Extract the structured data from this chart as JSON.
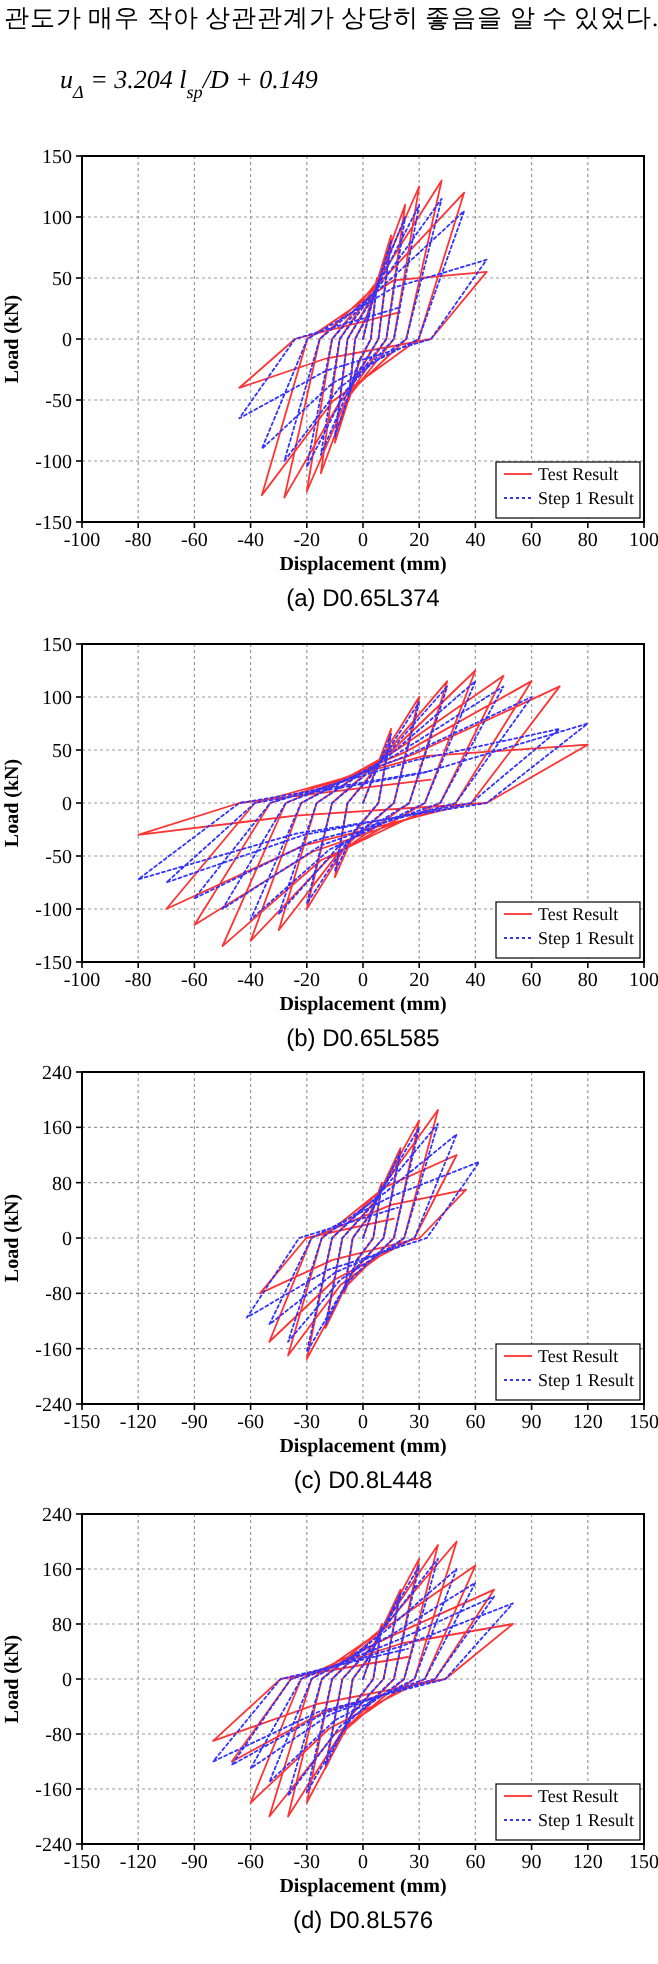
{
  "chart_data": [
    {
      "type": "line",
      "title": "(a) D0.65L374",
      "xlabel": "Displacement (mm)",
      "ylabel": "Load (kN)",
      "annotations": [
        "관도가 매우 작아 상관관계가 상당히 좋음을 알 수 있었다.",
        "u$_{Δ}$ = 3.204 l$_{sp}$/D + 0.149"
      ],
      "xlim": [
        -100,
        100
      ],
      "xticks": [
        -100,
        -80,
        -60,
        -40,
        -20,
        0,
        20,
        40,
        60,
        80,
        100
      ],
      "ylim": [
        -150,
        150
      ],
      "yticks": [
        -150,
        -100,
        -50,
        0,
        50,
        100,
        150
      ],
      "grid": true,
      "legend": "bottom right",
      "series": [
        {
          "name": "Test Result",
          "color": "#ff3333",
          "line_style": "solid",
          "x": [
            0,
            5,
            2.8,
            -1.5,
            -5,
            -2.8,
            1.5,
            10,
            5.5,
            -3,
            -10,
            -5.5,
            3,
            15,
            8.3,
            -4.5,
            -15,
            -8.3,
            4.5,
            20,
            11,
            -6,
            -20,
            -11,
            6,
            28,
            15.4,
            -8.4,
            -28,
            -15.4,
            8.4,
            36,
            19.8,
            -10.8,
            -36,
            -19.8,
            10.8,
            44,
            24.2,
            -13.2,
            -44,
            -24.2,
            13.2
          ],
          "values": [
            0,
            50,
            0,
            -20,
            -50,
            0,
            20,
            85,
            0,
            -34,
            -85,
            0,
            34,
            110,
            0,
            -44,
            -110,
            0,
            44,
            125,
            0,
            -50,
            -125,
            0,
            50,
            130,
            0,
            -52,
            -130,
            0,
            52,
            120,
            0,
            -51,
            -128,
            0,
            48,
            55,
            0,
            -16,
            -40,
            0,
            22
          ]
        },
        {
          "name": "Step 1 Result",
          "color": "#3333ff",
          "line_style": "dotted",
          "x": [
            0,
            5,
            2.8,
            -1.5,
            -5,
            -2.8,
            1.5,
            10,
            5.5,
            -3,
            -10,
            -5.5,
            3,
            15,
            8.3,
            -4.5,
            -15,
            -8.3,
            4.5,
            20,
            11,
            -6,
            -20,
            -11,
            6,
            28,
            15.4,
            -8.4,
            -28,
            -15.4,
            8.4,
            36,
            19.8,
            -10.8,
            -36,
            -19.8,
            10.8,
            44,
            24.2,
            -13.2,
            -44,
            -24.2,
            13.2
          ],
          "values": [
            0,
            45,
            0,
            -18,
            -45,
            0,
            18,
            80,
            0,
            -32,
            -80,
            0,
            32,
            100,
            0,
            -38,
            -95,
            0,
            40,
            110,
            0,
            -42,
            -105,
            0,
            44,
            115,
            0,
            -40,
            -100,
            0,
            46,
            105,
            0,
            -36,
            -90,
            0,
            42,
            65,
            0,
            -26,
            -65,
            0,
            26
          ]
        }
      ]
    },
    {
      "type": "line",
      "title": "(b) D0.65L585",
      "xlabel": "Displacement (mm)",
      "ylabel": "Load (kN)",
      "xlim": [
        -100,
        100
      ],
      "xticks": [
        -100,
        -80,
        -60,
        -40,
        -20,
        0,
        20,
        40,
        60,
        80,
        100
      ],
      "ylim": [
        -150,
        150
      ],
      "yticks": [
        -150,
        -100,
        -50,
        0,
        50,
        100,
        150
      ],
      "grid": true,
      "legend": "bottom right",
      "series": [
        {
          "name": "Test Result",
          "color": "#ff3333",
          "line_style": "solid",
          "x": [
            0,
            10,
            5.5,
            -3,
            -10,
            -5.5,
            3,
            20,
            11,
            -6,
            -20,
            -11,
            6,
            30,
            16.5,
            -9,
            -30,
            -16.5,
            9,
            40,
            22,
            -12,
            -40,
            -22,
            12,
            50,
            27.5,
            -15,
            -50,
            -27.5,
            15,
            60,
            33,
            -18,
            -60,
            -33,
            18,
            70,
            38.5,
            -21,
            -70,
            -38.5,
            21,
            80,
            44,
            -24,
            -80,
            -44,
            24
          ],
          "values": [
            0,
            70,
            0,
            -28,
            -70,
            0,
            28,
            100,
            0,
            -40,
            -100,
            0,
            40,
            115,
            0,
            -48,
            -120,
            0,
            46,
            125,
            0,
            -52,
            -130,
            0,
            50,
            120,
            0,
            -54,
            -135,
            0,
            48,
            115,
            0,
            -46,
            -115,
            0,
            46,
            110,
            0,
            -40,
            -100,
            0,
            44,
            55,
            0,
            -12,
            -30,
            0,
            22
          ]
        },
        {
          "name": "Step 1 Result",
          "color": "#3333ff",
          "line_style": "dotted",
          "x": [
            0,
            10,
            5.5,
            -3,
            -10,
            -5.5,
            3,
            20,
            11,
            -6,
            -20,
            -11,
            6,
            30,
            16.5,
            -9,
            -30,
            -16.5,
            9,
            40,
            22,
            -12,
            -40,
            -22,
            12,
            50,
            27.5,
            -15,
            -50,
            -27.5,
            15,
            60,
            33,
            -18,
            -60,
            -33,
            18,
            70,
            38.5,
            -21,
            -70,
            -38.5,
            21,
            80,
            44,
            -24,
            -80,
            -44,
            24
          ],
          "values": [
            0,
            65,
            0,
            -26,
            -65,
            0,
            26,
            95,
            0,
            -38,
            -95,
            0,
            38,
            110,
            0,
            -42,
            -105,
            0,
            44,
            115,
            0,
            -44,
            -110,
            0,
            46,
            110,
            0,
            -40,
            -100,
            0,
            44,
            100,
            0,
            -36,
            -90,
            0,
            40,
            70,
            0,
            -30,
            -75,
            0,
            28,
            75,
            0,
            -29,
            -72,
            0,
            30
          ]
        }
      ]
    },
    {
      "type": "line",
      "title": "(c) D0.8L448",
      "xlabel": "Displacement (mm)",
      "ylabel": "Load (kN)",
      "xlim": [
        -150,
        150
      ],
      "xticks": [
        -150,
        -120,
        -90,
        -60,
        -30,
        0,
        30,
        60,
        90,
        120,
        150
      ],
      "ylim": [
        -240,
        240
      ],
      "yticks": [
        -240,
        -160,
        -80,
        0,
        80,
        160,
        240
      ],
      "grid": true,
      "legend": "bottom right",
      "series": [
        {
          "name": "Test Result",
          "color": "#ff3333",
          "line_style": "solid",
          "x": [
            0,
            10,
            5.5,
            -3,
            -10,
            -5.5,
            3,
            20,
            11,
            -6,
            -20,
            -11,
            6,
            30,
            16.5,
            -9,
            -30,
            -16.5,
            9,
            40,
            22,
            -12,
            -40,
            -22,
            12,
            50,
            27.5,
            -15,
            -50,
            -27.5,
            15,
            55,
            30.3,
            -16.5,
            -55,
            -30.3,
            16.5
          ],
          "values": [
            0,
            80,
            0,
            -32,
            -80,
            0,
            32,
            130,
            0,
            -52,
            -130,
            0,
            52,
            170,
            0,
            -70,
            -175,
            0,
            68,
            185,
            0,
            -68,
            -170,
            0,
            74,
            120,
            0,
            -60,
            -150,
            0,
            48,
            70,
            0,
            -32,
            -80,
            0,
            28
          ]
        },
        {
          "name": "Step 1 Result",
          "color": "#3333ff",
          "line_style": "dotted",
          "x": [
            0,
            10,
            5.5,
            -3,
            -10,
            -5.5,
            3,
            20,
            11,
            -6,
            -20,
            -11,
            6,
            30,
            16.5,
            -9,
            -30,
            -16.5,
            9,
            40,
            22,
            -12,
            -40,
            -22,
            12,
            50,
            27.5,
            -15,
            -50,
            -27.5,
            15,
            62,
            34.1,
            -18.6,
            -62,
            -34.1,
            18.6
          ],
          "values": [
            0,
            75,
            0,
            -30,
            -75,
            0,
            30,
            125,
            0,
            -50,
            -125,
            0,
            50,
            160,
            0,
            -66,
            -165,
            0,
            64,
            165,
            0,
            -60,
            -150,
            0,
            66,
            150,
            0,
            -50,
            -125,
            0,
            60,
            110,
            0,
            -46,
            -115,
            0,
            44
          ]
        }
      ]
    },
    {
      "type": "line",
      "title": "(d) D0.8L576",
      "xlabel": "Displacement (mm)",
      "ylabel": "Load (kN)",
      "xlim": [
        -150,
        150
      ],
      "xticks": [
        -150,
        -120,
        -90,
        -60,
        -30,
        0,
        30,
        60,
        90,
        120,
        150
      ],
      "ylim": [
        -240,
        240
      ],
      "yticks": [
        -240,
        -160,
        -80,
        0,
        80,
        160,
        240
      ],
      "grid": true,
      "legend": "bottom right",
      "series": [
        {
          "name": "Test Result",
          "color": "#ff3333",
          "line_style": "solid",
          "x": [
            0,
            10,
            5.5,
            -3,
            -10,
            -5.5,
            3,
            20,
            11,
            -6,
            -20,
            -11,
            6,
            30,
            16.5,
            -9,
            -30,
            -16.5,
            9,
            40,
            22,
            -12,
            -40,
            -22,
            12,
            50,
            27.5,
            -15,
            -50,
            -27.5,
            15,
            60,
            33,
            -18,
            -60,
            -33,
            18,
            70,
            38.5,
            -21,
            -70,
            -38.5,
            21,
            80,
            44,
            -24,
            -80,
            -44,
            24
          ],
          "values": [
            0,
            80,
            0,
            -32,
            -80,
            0,
            32,
            130,
            0,
            -52,
            -130,
            0,
            52,
            175,
            0,
            -72,
            -180,
            0,
            70,
            195,
            0,
            -80,
            -200,
            0,
            78,
            200,
            0,
            -80,
            -200,
            0,
            80,
            165,
            0,
            -72,
            -180,
            0,
            66,
            130,
            0,
            -48,
            -120,
            0,
            52,
            80,
            0,
            -36,
            -90,
            0,
            32
          ]
        },
        {
          "name": "Step 1 Result",
          "color": "#3333ff",
          "line_style": "dotted",
          "x": [
            0,
            10,
            5.5,
            -3,
            -10,
            -5.5,
            3,
            20,
            11,
            -6,
            -20,
            -11,
            6,
            30,
            16.5,
            -9,
            -30,
            -16.5,
            9,
            40,
            22,
            -12,
            -40,
            -22,
            12,
            50,
            27.5,
            -15,
            -50,
            -27.5,
            15,
            60,
            33,
            -18,
            -60,
            -33,
            18,
            70,
            38.5,
            -21,
            -70,
            -38.5,
            21,
            80,
            44,
            -24,
            -80,
            -44,
            24
          ],
          "values": [
            0,
            75,
            0,
            -30,
            -75,
            0,
            30,
            125,
            0,
            -50,
            -125,
            0,
            50,
            165,
            0,
            -66,
            -165,
            0,
            66,
            175,
            0,
            -68,
            -170,
            0,
            70,
            160,
            0,
            -60,
            -150,
            0,
            64,
            140,
            0,
            -52,
            -130,
            0,
            56,
            120,
            0,
            -50,
            -125,
            0,
            48,
            110,
            0,
            -48,
            -120,
            0,
            44
          ]
        }
      ]
    }
  ]
}
